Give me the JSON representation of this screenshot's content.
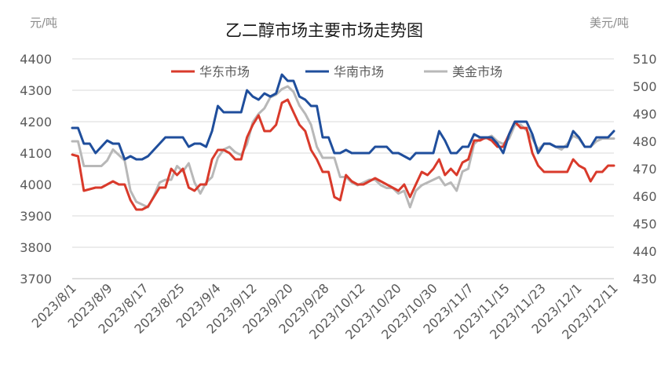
{
  "chart_data": {
    "type": "line",
    "title": "乙二醇市场主要市场走势图",
    "left_unit": "元/吨",
    "right_unit": "美元/吨",
    "left_axis": {
      "min": 3700,
      "max": 4400,
      "step": 100,
      "ticks": [
        "3700",
        "3800",
        "3900",
        "4000",
        "4100",
        "4200",
        "4300",
        "4400"
      ]
    },
    "right_axis": {
      "min": 430,
      "max": 510,
      "step": 10,
      "ticks": [
        "430",
        "440",
        "450",
        "460",
        "470",
        "480",
        "490",
        "500",
        "510"
      ]
    },
    "x_tick_labels": [
      "2023/8/1",
      "2023/8/9",
      "2023/8/17",
      "2023/8/25",
      "2023/9/4",
      "2023/9/12",
      "2023/9/20",
      "2023/9/28",
      "2023/10/12",
      "2023/10/20",
      "2023/10/30",
      "2023/11/7",
      "2023/11/15",
      "2023/11/23",
      "2023/12/1",
      "2023/12/11"
    ],
    "grid": "horizontal",
    "legend_position": "top",
    "series": [
      {
        "name": "华东市场",
        "axis": "left",
        "color": "#d93a2b",
        "values": [
          4095,
          4090,
          3980,
          3985,
          3990,
          3990,
          4000,
          4010,
          4000,
          4000,
          3950,
          3920,
          3920,
          3930,
          3960,
          3990,
          3990,
          4050,
          4030,
          4050,
          3990,
          3980,
          4000,
          4000,
          4080,
          4110,
          4110,
          4100,
          4080,
          4080,
          4150,
          4190,
          4220,
          4170,
          4170,
          4190,
          4260,
          4270,
          4230,
          4190,
          4170,
          4110,
          4080,
          4040,
          4040,
          3960,
          3950,
          4030,
          4010,
          4000,
          4000,
          4010,
          4020,
          4010,
          4000,
          3990,
          3980,
          4000,
          3960,
          4000,
          4040,
          4030,
          4050,
          4080,
          4030,
          4050,
          4030,
          4070,
          4080,
          4140,
          4140,
          4150,
          4140,
          4120,
          4120,
          4160,
          4200,
          4180,
          4180,
          4100,
          4060,
          4040,
          4040,
          4040,
          4040,
          4040,
          4080,
          4060,
          4050,
          4010,
          4040,
          4040,
          4060,
          4060
        ]
      },
      {
        "name": "华南市场",
        "axis": "left",
        "color": "#1f4e9c",
        "values": [
          4180,
          4180,
          4130,
          4130,
          4100,
          4120,
          4140,
          4130,
          4130,
          4080,
          4090,
          4080,
          4080,
          4090,
          4110,
          4130,
          4150,
          4150,
          4150,
          4150,
          4120,
          4130,
          4130,
          4120,
          4170,
          4250,
          4230,
          4230,
          4230,
          4230,
          4300,
          4280,
          4270,
          4290,
          4280,
          4290,
          4350,
          4330,
          4330,
          4280,
          4270,
          4250,
          4250,
          4150,
          4150,
          4100,
          4100,
          4110,
          4100,
          4100,
          4100,
          4100,
          4120,
          4120,
          4120,
          4100,
          4100,
          4090,
          4080,
          4100,
          4100,
          4100,
          4100,
          4170,
          4140,
          4100,
          4100,
          4120,
          4120,
          4160,
          4150,
          4150,
          4150,
          4130,
          4100,
          4160,
          4200,
          4200,
          4200,
          4160,
          4100,
          4130,
          4130,
          4120,
          4120,
          4120,
          4170,
          4150,
          4120,
          4120,
          4150,
          4150,
          4150,
          4170
        ]
      },
      {
        "name": "美金市场",
        "axis": "right",
        "color": "#b8b8b8",
        "values": [
          480,
          480,
          471,
          471,
          471,
          471,
          473,
          477,
          475,
          473,
          462,
          458,
          457,
          456,
          460,
          465,
          466,
          466,
          471,
          469,
          472,
          465,
          461,
          465,
          467,
          474,
          477,
          478,
          476,
          475,
          479,
          487,
          490,
          492,
          496,
          497,
          499,
          500,
          498,
          493,
          490,
          486,
          478,
          474,
          474,
          474,
          467,
          467,
          465,
          464,
          465,
          466,
          466,
          464,
          463,
          463,
          461,
          462,
          456,
          462,
          464,
          465,
          466,
          467,
          464,
          465,
          462,
          469,
          470,
          479,
          481,
          481,
          482,
          480,
          479,
          481,
          486,
          486,
          484,
          481,
          477,
          479,
          479,
          478,
          477,
          479,
          482,
          481,
          478,
          478,
          480,
          481,
          481,
          481
        ]
      }
    ]
  }
}
